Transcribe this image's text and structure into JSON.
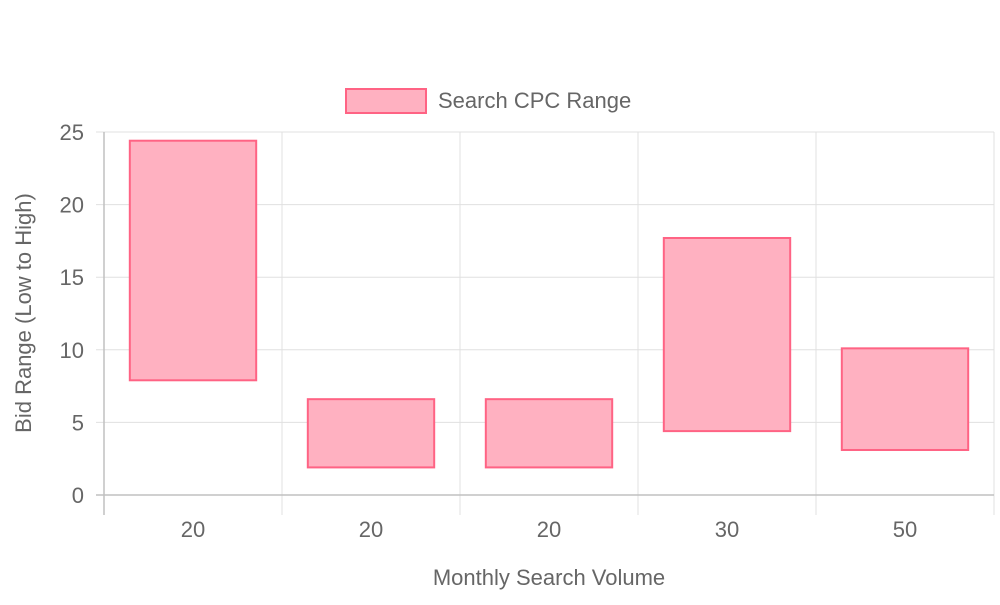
{
  "chart_data": {
    "type": "bar",
    "subtype": "floating-range",
    "categories": [
      "20",
      "20",
      "20",
      "30",
      "50"
    ],
    "series": [
      {
        "name": "Search CPC Range",
        "ranges": [
          [
            7.9,
            24.4
          ],
          [
            1.9,
            6.6
          ],
          [
            1.9,
            6.6
          ],
          [
            4.4,
            17.7
          ],
          [
            3.1,
            10.1
          ]
        ],
        "fill_color": "#ffb1c1",
        "border_color": "#ff6384"
      }
    ],
    "xlabel": "Monthly Search Volume",
    "ylabel": "Bid Range (Low to High)",
    "ylim": [
      0,
      25
    ],
    "yticks": [
      "0",
      "5",
      "10",
      "15",
      "20",
      "25"
    ],
    "grid": true,
    "legend_position": "top"
  }
}
